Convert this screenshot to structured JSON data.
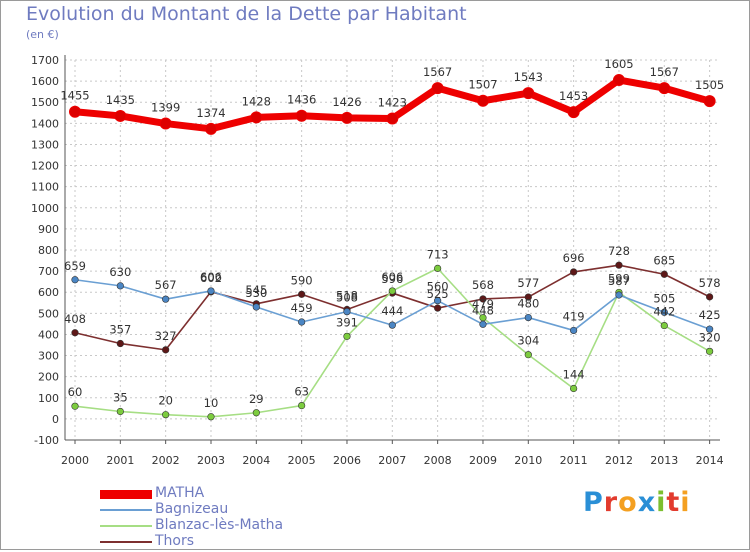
{
  "title": "Evolution du Montant de la Dette par Habitant",
  "subtitle": "(en €)",
  "logo": {
    "text": "Proxiti",
    "colors": [
      "#2a8fd6",
      "#e23b2e",
      "#f4a021",
      "#2a8fd6",
      "#7cbf2f",
      "#e23b2e",
      "#f4a021"
    ]
  },
  "chart_data": {
    "type": "line",
    "title": "Evolution du Montant de la Dette par Habitant",
    "ylabel": "(en €)",
    "x": [
      "2000",
      "2001",
      "2002",
      "2003",
      "2004",
      "2005",
      "2006",
      "2007",
      "2008",
      "2009",
      "2010",
      "2011",
      "2012",
      "2013",
      "2014"
    ],
    "ylim": [
      -100,
      1700
    ],
    "yticks": [
      -100,
      0,
      100,
      200,
      300,
      400,
      500,
      600,
      700,
      800,
      900,
      1000,
      1100,
      1200,
      1300,
      1400,
      1500,
      1600,
      1700
    ],
    "grid": true,
    "legend": "bottom-left",
    "series": [
      {
        "name": "MATHA",
        "color": "#ee0000",
        "marker": "#dd0000",
        "thick": true,
        "values": [
          1455,
          1435,
          1399,
          1374,
          1428,
          1436,
          1426,
          1423,
          1567,
          1507,
          1543,
          1453,
          1605,
          1567,
          1505
        ]
      },
      {
        "name": "Bagnizeau",
        "color": "#6a9fd3",
        "marker": "#4b86c4",
        "thick": false,
        "values": [
          659,
          630,
          567,
          606,
          530,
          459,
          508,
          444,
          560,
          448,
          480,
          419,
          587,
          505,
          425
        ]
      },
      {
        "name": "Blanzac-lès-Matha",
        "color": "#a6de84",
        "marker": "#7ccc3e",
        "thick": false,
        "values": [
          60,
          35,
          20,
          10,
          29,
          63,
          391,
          606,
          713,
          479,
          304,
          144,
          599,
          442,
          320
        ]
      },
      {
        "name": "Thors",
        "color": "#7d2f2f",
        "marker": "#5e1818",
        "thick": false,
        "values": [
          408,
          357,
          327,
          602,
          545,
          590,
          518,
          596,
          525,
          568,
          577,
          696,
          728,
          685,
          578
        ]
      }
    ]
  }
}
